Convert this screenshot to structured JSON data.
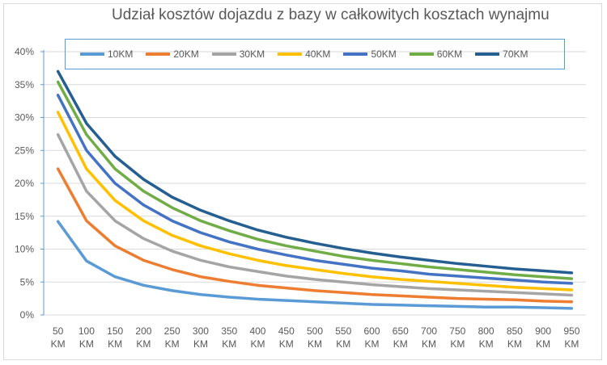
{
  "chart_data": {
    "type": "line",
    "title": "Udział kosztów dojazdu z bazy w całkowitych kosztach wynajmu",
    "categories": [
      "50 KM",
      "100 KM",
      "150 KM",
      "200 KM",
      "250 KM",
      "300 KM",
      "350 KM",
      "400 KM",
      "450 KM",
      "500 KM",
      "550 KM",
      "600 KM",
      "650 KM",
      "700 KM",
      "750 KM",
      "800 KM",
      "850 KM",
      "900 KM",
      "950 KM"
    ],
    "ylim": [
      0,
      40
    ],
    "yticks": [
      "0%",
      "5%",
      "10%",
      "15%",
      "20%",
      "25%",
      "30%",
      "35%",
      "40%"
    ],
    "grid": true,
    "legend": "top",
    "series": [
      {
        "name": "10KM",
        "color": "#5b9bd5",
        "values": [
          14.2,
          8.2,
          5.8,
          4.5,
          3.7,
          3.1,
          2.7,
          2.4,
          2.2,
          2.0,
          1.8,
          1.6,
          1.5,
          1.4,
          1.3,
          1.2,
          1.2,
          1.1,
          1.0
        ]
      },
      {
        "name": "20KM",
        "color": "#ed7d31",
        "values": [
          22.2,
          14.3,
          10.5,
          8.3,
          6.9,
          5.8,
          5.1,
          4.5,
          4.1,
          3.7,
          3.4,
          3.1,
          2.9,
          2.7,
          2.5,
          2.4,
          2.3,
          2.1,
          2.0
        ]
      },
      {
        "name": "30KM",
        "color": "#a5a5a5",
        "values": [
          27.4,
          18.8,
          14.3,
          11.6,
          9.7,
          8.3,
          7.3,
          6.6,
          5.9,
          5.4,
          5.0,
          4.6,
          4.3,
          4.0,
          3.8,
          3.6,
          3.4,
          3.2,
          3.0
        ]
      },
      {
        "name": "40KM",
        "color": "#ffc000",
        "values": [
          30.8,
          22.2,
          17.4,
          14.3,
          12.1,
          10.5,
          9.3,
          8.3,
          7.5,
          6.9,
          6.3,
          5.8,
          5.4,
          5.1,
          4.8,
          4.5,
          4.2,
          4.0,
          3.8
        ]
      },
      {
        "name": "50KM",
        "color": "#4472c4",
        "values": [
          33.4,
          25.0,
          20.0,
          16.7,
          14.3,
          12.5,
          11.1,
          10.0,
          9.1,
          8.3,
          7.7,
          7.1,
          6.7,
          6.2,
          5.9,
          5.6,
          5.3,
          5.0,
          4.8
        ]
      },
      {
        "name": "60KM",
        "color": "#70ad47",
        "values": [
          35.4,
          27.4,
          22.2,
          18.8,
          16.3,
          14.3,
          12.8,
          11.5,
          10.5,
          9.7,
          8.9,
          8.3,
          7.8,
          7.3,
          6.9,
          6.5,
          6.1,
          5.8,
          5.5
        ]
      },
      {
        "name": "70KM",
        "color": "#255e91",
        "values": [
          37.0,
          29.1,
          24.1,
          20.6,
          17.9,
          15.9,
          14.3,
          12.9,
          11.8,
          10.9,
          10.1,
          9.4,
          8.8,
          8.3,
          7.8,
          7.4,
          7.0,
          6.7,
          6.4
        ]
      }
    ]
  }
}
